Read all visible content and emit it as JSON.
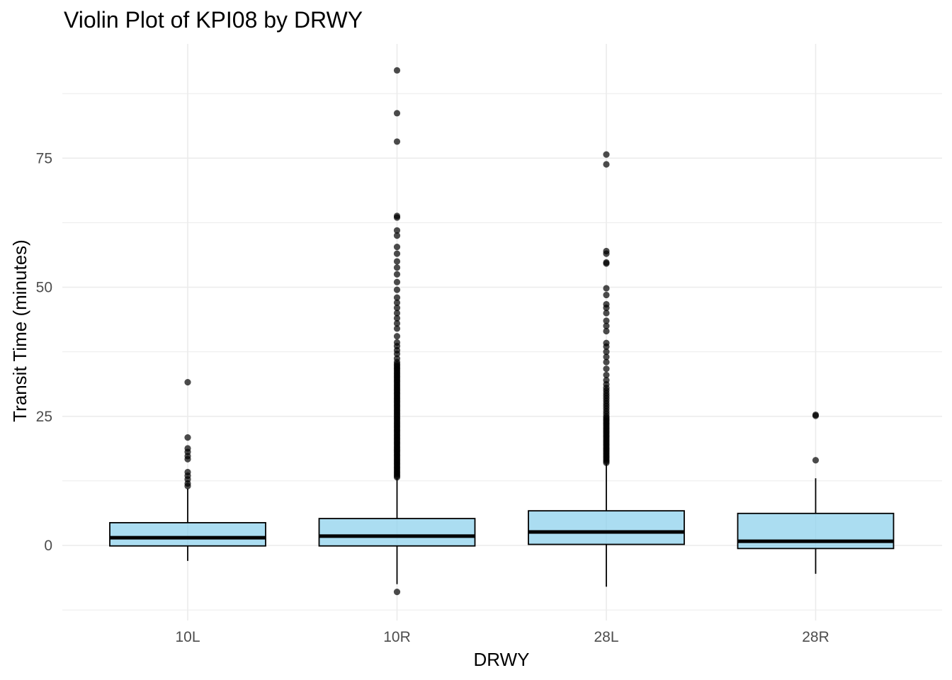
{
  "chart_data": {
    "type": "box",
    "title": "Violin Plot of KPI08 by DRWY",
    "xlabel": "DRWY",
    "ylabel": "Transit Time (minutes)",
    "categories": [
      "10L",
      "10R",
      "28L",
      "28R"
    ],
    "ylim": [
      -12.5,
      97
    ],
    "y_ticks": [
      0,
      25,
      50,
      75
    ],
    "y_minor_ticks": [
      -12.5,
      12.5,
      37.5,
      62.5,
      87.5
    ],
    "grid": true,
    "legend": "none",
    "colors": {
      "box_fill": "#87ceeb",
      "box_stroke": "#000000",
      "grid": "#ebebeb",
      "outlier": "#000000"
    },
    "boxes": [
      {
        "category": "10L",
        "whisker_low": -3,
        "q1": -0.1,
        "median": 1.5,
        "q3": 4.4,
        "whisker_high": 11,
        "outliers": [
          11.5,
          12,
          12.8,
          13.5,
          14.2,
          16.7,
          17.3,
          18.1,
          18.8,
          20.9,
          31.6
        ]
      },
      {
        "category": "10R",
        "whisker_low": -7.5,
        "q1": -0.1,
        "median": 1.8,
        "q3": 5.2,
        "whisker_high": 13,
        "outliers": [
          -9,
          13.2,
          13.5,
          13.8,
          14.1,
          14.4,
          14.7,
          15,
          15.3,
          15.6,
          15.9,
          16.2,
          16.5,
          16.8,
          17.1,
          17.4,
          17.7,
          18,
          18.3,
          18.6,
          18.9,
          19.2,
          19.5,
          19.8,
          20.1,
          20.4,
          20.7,
          21,
          21.3,
          21.6,
          21.9,
          22.2,
          22.5,
          22.8,
          23.1,
          23.4,
          23.7,
          24,
          24.3,
          24.6,
          24.9,
          25.2,
          25.5,
          25.8,
          26.1,
          26.4,
          26.7,
          27,
          27.3,
          27.6,
          27.9,
          28.2,
          28.5,
          28.8,
          29.1,
          29.4,
          29.7,
          30,
          30.3,
          30.6,
          30.9,
          31.2,
          31.5,
          31.8,
          32.1,
          32.4,
          32.7,
          33,
          33.3,
          33.6,
          33.9,
          34.2,
          34.5,
          34.8,
          35.1,
          35.5,
          36.2,
          37.1,
          37.8,
          38.6,
          39.3,
          40.5,
          42,
          43,
          44,
          45,
          46,
          47,
          48,
          49.5,
          51,
          52.5,
          53.8,
          55,
          56.5,
          57.8,
          60,
          61,
          63.5,
          63.8,
          78.2,
          83.7,
          92
        ]
      },
      {
        "category": "28L",
        "whisker_low": -8,
        "q1": 0.2,
        "median": 2.6,
        "q3": 6.7,
        "whisker_high": 15.8,
        "outliers": [
          16,
          16.3,
          16.6,
          16.9,
          17.2,
          17.5,
          17.8,
          18.1,
          18.4,
          18.7,
          19,
          19.3,
          19.6,
          19.9,
          20.2,
          20.5,
          20.8,
          21.1,
          21.4,
          21.7,
          22,
          22.3,
          22.6,
          22.9,
          23.2,
          23.5,
          23.8,
          24.1,
          24.4,
          24.7,
          25,
          25.5,
          26,
          26.5,
          27,
          27.5,
          28,
          28.5,
          29,
          29.5,
          30,
          30.5,
          31.2,
          32,
          33,
          34.2,
          35.5,
          36.5,
          37.5,
          38.5,
          39.2,
          41.5,
          42.5,
          43.5,
          45,
          46,
          46.7,
          48.5,
          49.8,
          54.6,
          54.8,
          56.5,
          57,
          73.8,
          75.7
        ]
      },
      {
        "category": "28R",
        "whisker_low": -5.5,
        "q1": -0.6,
        "median": 0.8,
        "q3": 6.2,
        "whisker_high": 13,
        "outliers": [
          16.5,
          25.1,
          25.3
        ]
      }
    ]
  }
}
